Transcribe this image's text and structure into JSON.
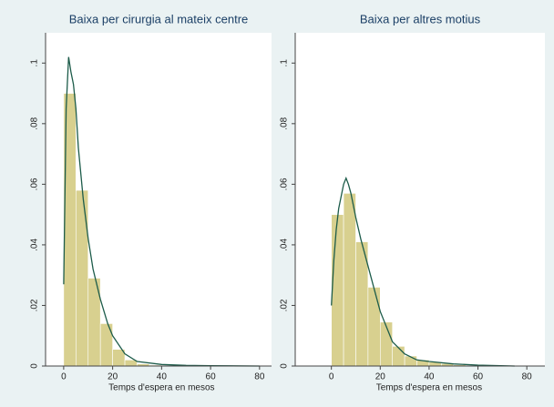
{
  "chart_data": [
    {
      "type": "histogram",
      "title": "Baixa per cirurgia al mateix centre",
      "x_label": "Temps d'espera en mesos",
      "bins": [
        0,
        5,
        10,
        15,
        20,
        25,
        30,
        35,
        40,
        45,
        50,
        55,
        60,
        65,
        70,
        75,
        80
      ],
      "values": [
        0.09,
        0.058,
        0.029,
        0.014,
        0.0055,
        0.002,
        0.0007,
        0.0003,
        0.0002,
        0.0001,
        0.0001,
        0.0001,
        0.0001,
        0.0001,
        0.0001,
        0.0001
      ],
      "color": "#d8d08f",
      "density": {
        "x": [
          0,
          1,
          2,
          3,
          4,
          5,
          6,
          8,
          10,
          12,
          15,
          18,
          20,
          25,
          30,
          40,
          50,
          60,
          80
        ],
        "values": [
          0.027,
          0.085,
          0.102,
          0.097,
          0.093,
          0.085,
          0.072,
          0.055,
          0.042,
          0.032,
          0.022,
          0.014,
          0.01,
          0.004,
          0.0015,
          0.0005,
          0.0002,
          0.0001,
          0
        ],
        "color": "#1d5c4a"
      },
      "xlim": [
        -7.4,
        84.9
      ],
      "ylim": [
        0,
        0.11
      ],
      "xticks": [
        0,
        20,
        40,
        60,
        80
      ],
      "yticks": [
        0,
        {
          "value": 0.02,
          "label": ".02"
        },
        {
          "value": 0.04,
          "label": ".04"
        },
        {
          "value": 0.06,
          "label": ".06"
        },
        {
          "value": 0.08,
          "label": ".08"
        },
        {
          "value": 0.1,
          "label": ".1"
        }
      ]
    },
    {
      "type": "histogram",
      "title": "Baixa per altres motius",
      "x_label": "Temps d'espera en mesos",
      "bins": [
        0,
        5,
        10,
        15,
        20,
        25,
        30,
        35,
        40,
        45,
        50,
        55,
        60,
        65,
        70,
        75
      ],
      "values": [
        0.05,
        0.057,
        0.041,
        0.026,
        0.0145,
        0.0065,
        0.0033,
        0.002,
        0.0013,
        0.0008,
        0.0004,
        0.0002,
        0.0001,
        0.0001,
        0.0001
      ],
      "color": "#d8d08f",
      "density": {
        "x": [
          0,
          1,
          2,
          3,
          4,
          5,
          6,
          7,
          8,
          10,
          12,
          15,
          18,
          20,
          25,
          30,
          35,
          40,
          50,
          60,
          75
        ],
        "values": [
          0.02,
          0.035,
          0.045,
          0.052,
          0.056,
          0.06,
          0.062,
          0.06,
          0.057,
          0.049,
          0.042,
          0.033,
          0.024,
          0.018,
          0.008,
          0.004,
          0.002,
          0.0015,
          0.0007,
          0.0003,
          0
        ],
        "color": "#1d5c4a"
      },
      "xlim": [
        -14.8,
        87.4
      ],
      "ylim": [
        0,
        0.11
      ],
      "xticks": [
        0,
        20,
        40,
        60,
        80
      ],
      "yticks": [
        0,
        {
          "value": 0.02,
          "label": ".02"
        },
        {
          "value": 0.04,
          "label": ".04"
        },
        {
          "value": 0.06,
          "label": ".06"
        },
        {
          "value": 0.08,
          "label": ".08"
        },
        {
          "value": 0.1,
          "label": ".1"
        }
      ]
    }
  ]
}
